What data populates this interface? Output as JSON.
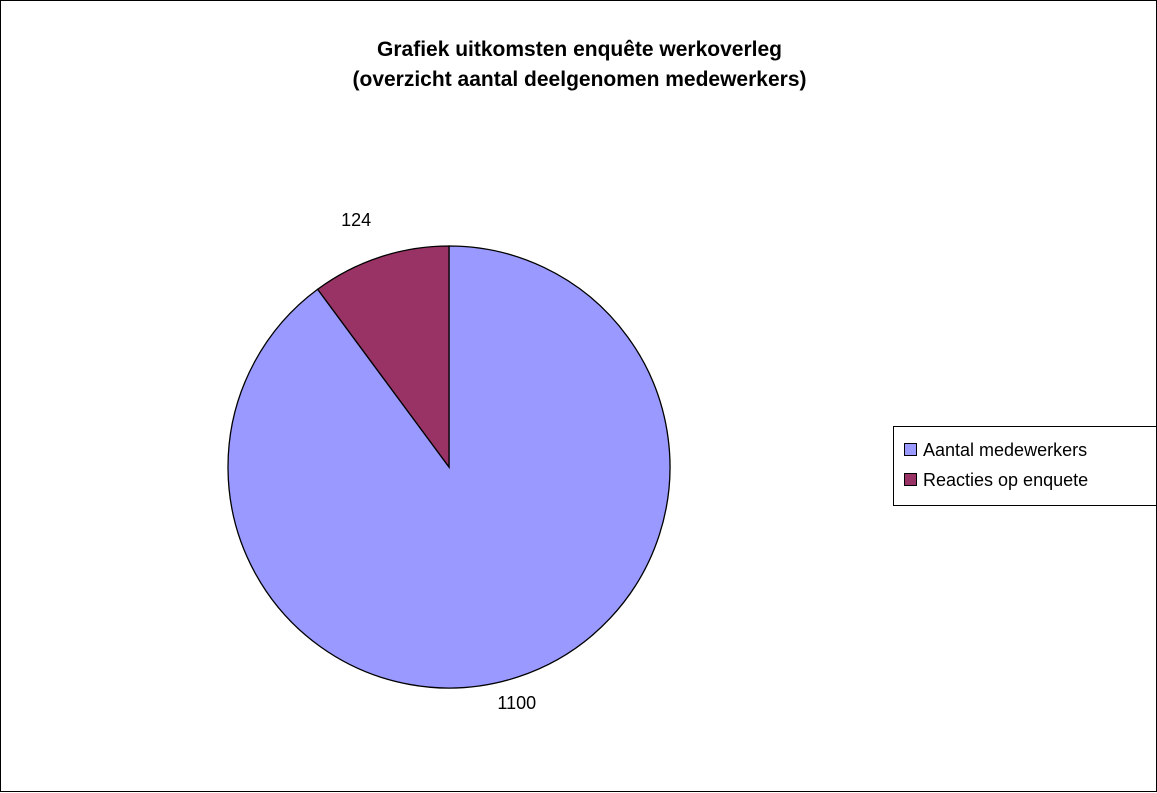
{
  "chart_data": {
    "type": "pie",
    "title": [
      "Grafiek uitkomsten enquête werkoverleg",
      "(overzicht aantal deelgenomen medewerkers)"
    ],
    "slices": [
      {
        "label": "Aantal medewerkers",
        "value": 1100,
        "value_label": "1100",
        "color": "#9999ff"
      },
      {
        "label": "Reacties op enquete",
        "value": 124,
        "value_label": "124",
        "color": "#993366"
      }
    ],
    "start_angle_deg": 0,
    "direction": "clockwise",
    "legend_position": "right"
  }
}
